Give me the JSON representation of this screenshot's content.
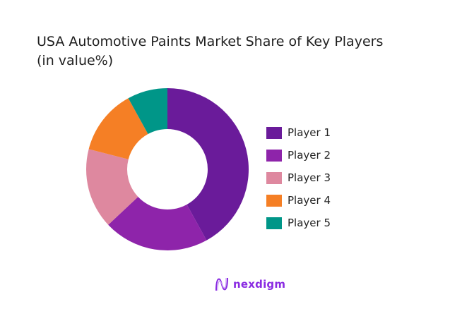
{
  "title_line1": "USA Automotive Paints Market Share of Key Players",
  "title_line2": "(in value%)",
  "logo": {
    "text": "nexdigm",
    "icon": "nexdigm-wave-logo-icon",
    "color": "#8a2be2"
  },
  "chart_data": {
    "type": "pie",
    "donut": true,
    "title": "USA Automotive Paints Market Share of Key Players (in value%)",
    "categories": [
      "Player 1",
      "Player 2",
      "Player 3",
      "Player 4",
      "Player 5"
    ],
    "values": [
      42,
      21,
      16,
      13,
      8
    ],
    "colors": [
      "#6a1b9a",
      "#8e24aa",
      "#de889f",
      "#f57f25",
      "#009688"
    ],
    "legend_position": "right",
    "start_angle": "top, clockwise"
  },
  "legend": [
    {
      "label": "Player 1",
      "color": "#6a1b9a"
    },
    {
      "label": "Player 2",
      "color": "#8e24aa"
    },
    {
      "label": "Player 3",
      "color": "#de889f"
    },
    {
      "label": "Player 4",
      "color": "#f57f25"
    },
    {
      "label": "Player 5",
      "color": "#009688"
    }
  ]
}
